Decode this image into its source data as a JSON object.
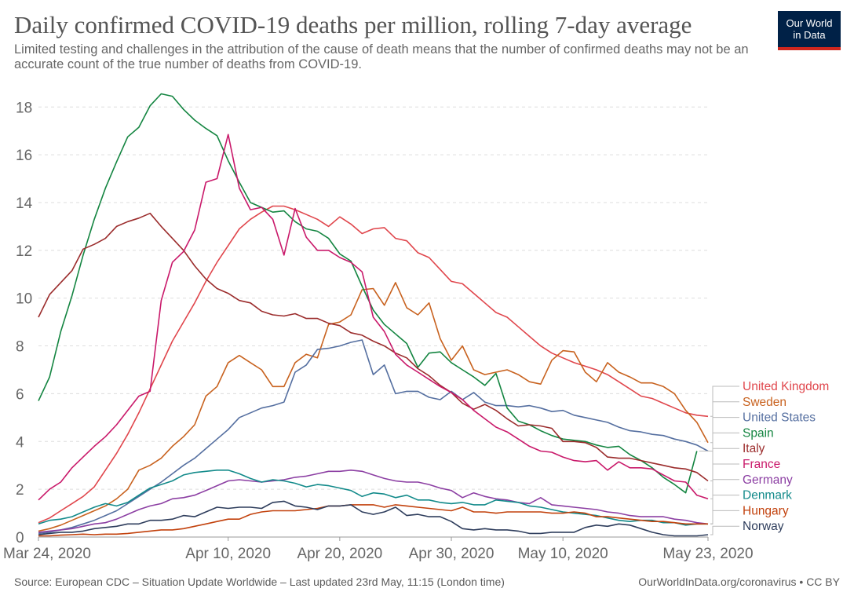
{
  "header": {
    "title": "Daily confirmed COVID-19 deaths per million, rolling 7-day average",
    "subtitle": "Limited testing and challenges in the attribution of the cause of death means that the number of confirmed deaths may not be an accurate count of the true number of deaths from COVID-19.",
    "logo_line1": "Our World",
    "logo_line2": "in Data"
  },
  "footer": {
    "source": "Source: European CDC – Situation Update Worldwide – Last updated 23rd May, 11:15 (London time)",
    "credit": "OurWorldInData.org/coronavirus • CC BY"
  },
  "chart_data": {
    "type": "line",
    "x_start": "2020-03-24",
    "x_end": "2020-05-23",
    "x_ticks": [
      {
        "label": "Mar 24, 2020",
        "day": 0
      },
      {
        "label": "Apr 10, 2020",
        "day": 17
      },
      {
        "label": "Apr 20, 2020",
        "day": 27
      },
      {
        "label": "Apr 30, 2020",
        "day": 37
      },
      {
        "label": "May 10, 2020",
        "day": 47
      },
      {
        "label": "May 23, 2020",
        "day": 60
      }
    ],
    "y_ticks": [
      0,
      2,
      4,
      6,
      8,
      10,
      12,
      14,
      16,
      18
    ],
    "ylim": [
      0,
      18.6
    ],
    "grid": "horizontal dashed",
    "legend": "right, labels connected to line ends",
    "series": [
      {
        "name": "United Kingdom",
        "color": "#e0464c",
        "values": [
          0.6,
          0.8,
          1.1,
          1.4,
          1.7,
          2.1,
          2.8,
          3.5,
          4.3,
          5.2,
          6.2,
          7.2,
          8.2,
          9.0,
          9.8,
          10.7,
          11.5,
          12.2,
          12.9,
          13.3,
          13.6,
          13.85,
          13.85,
          13.7,
          13.5,
          13.3,
          13.0,
          13.4,
          13.1,
          12.7,
          12.9,
          12.95,
          12.5,
          12.4,
          11.9,
          11.7,
          11.2,
          10.7,
          10.6,
          10.2,
          9.8,
          9.4,
          9.2,
          8.8,
          8.4,
          8.0,
          7.7,
          7.5,
          7.3,
          7.15,
          7.0,
          6.8,
          6.5,
          6.2,
          5.9,
          5.8,
          5.6,
          5.4,
          5.2,
          5.1,
          5.05
        ]
      },
      {
        "name": "Sweden",
        "color": "#c8621f",
        "values": [
          0.25,
          0.35,
          0.5,
          0.7,
          0.9,
          1.1,
          1.3,
          1.6,
          2.0,
          2.8,
          3.0,
          3.3,
          3.8,
          4.2,
          4.7,
          5.9,
          6.3,
          7.3,
          7.6,
          7.3,
          7.0,
          6.3,
          6.3,
          7.3,
          7.65,
          7.5,
          8.9,
          9.0,
          9.3,
          10.35,
          10.4,
          9.7,
          10.65,
          9.6,
          9.3,
          9.8,
          8.3,
          7.4,
          8.0,
          7.0,
          6.8,
          6.9,
          7.0,
          6.8,
          6.5,
          6.4,
          7.4,
          7.8,
          7.75,
          6.9,
          6.5,
          7.3,
          6.9,
          6.7,
          6.45,
          6.45,
          6.3,
          6.0,
          5.3,
          4.8,
          3.95
        ]
      },
      {
        "name": "United States",
        "color": "#556fa0",
        "values": [
          0.15,
          0.2,
          0.3,
          0.4,
          0.55,
          0.7,
          0.9,
          1.1,
          1.4,
          1.7,
          2.0,
          2.3,
          2.65,
          3.0,
          3.3,
          3.7,
          4.1,
          4.5,
          5.0,
          5.2,
          5.4,
          5.5,
          5.65,
          6.9,
          7.2,
          7.85,
          7.9,
          8.0,
          8.15,
          8.25,
          6.8,
          7.2,
          6.0,
          6.1,
          6.1,
          5.85,
          5.75,
          6.1,
          5.75,
          6.05,
          5.65,
          5.5,
          5.5,
          5.45,
          5.5,
          5.4,
          5.25,
          5.3,
          5.1,
          5.0,
          4.9,
          4.8,
          4.6,
          4.45,
          4.4,
          4.3,
          4.25,
          4.1,
          4.0,
          3.85,
          3.6
        ]
      },
      {
        "name": "Spain",
        "color": "#148541",
        "values": [
          5.7,
          6.7,
          8.6,
          10.1,
          11.8,
          13.3,
          14.6,
          15.7,
          16.75,
          17.15,
          18.05,
          18.55,
          18.45,
          17.9,
          17.45,
          17.1,
          16.8,
          15.75,
          14.85,
          14.0,
          13.8,
          13.6,
          13.65,
          13.2,
          12.9,
          12.8,
          12.5,
          11.85,
          11.55,
          10.5,
          9.5,
          8.9,
          8.5,
          8.1,
          7.1,
          7.7,
          7.75,
          7.3,
          7.0,
          6.7,
          6.35,
          6.85,
          5.4,
          4.85,
          4.7,
          4.45,
          4.25,
          4.1,
          4.05,
          4.0,
          3.85,
          3.75,
          3.8,
          3.45,
          3.2,
          2.9,
          2.5,
          2.2,
          1.85,
          3.6,
          null
        ]
      },
      {
        "name": "Italy",
        "color": "#9b2c2c",
        "values": [
          9.2,
          10.15,
          10.65,
          11.15,
          12.05,
          12.25,
          12.5,
          13.0,
          13.2,
          13.35,
          13.55,
          13.0,
          12.5,
          12.0,
          11.35,
          10.8,
          10.4,
          10.2,
          9.9,
          9.8,
          9.45,
          9.3,
          9.25,
          9.35,
          9.15,
          9.15,
          8.95,
          8.85,
          8.55,
          8.45,
          8.2,
          8.0,
          7.7,
          7.5,
          7.05,
          6.75,
          6.35,
          6.05,
          5.6,
          5.35,
          5.55,
          5.3,
          4.95,
          4.65,
          4.7,
          4.65,
          4.55,
          4.0,
          4.0,
          3.95,
          3.75,
          3.35,
          3.3,
          3.3,
          3.2,
          3.1,
          3.0,
          2.9,
          2.85,
          2.7,
          2.35
        ]
      },
      {
        "name": "France",
        "color": "#c9196a",
        "values": [
          1.55,
          2.0,
          2.3,
          2.9,
          3.35,
          3.8,
          4.2,
          4.7,
          5.3,
          5.9,
          6.1,
          9.9,
          11.5,
          11.95,
          12.85,
          14.85,
          15.0,
          16.85,
          14.6,
          13.7,
          13.8,
          13.3,
          11.8,
          13.75,
          12.55,
          12.0,
          12.0,
          11.7,
          11.5,
          11.1,
          9.2,
          8.6,
          7.65,
          7.2,
          6.9,
          6.6,
          6.3,
          6.05,
          5.75,
          5.3,
          4.95,
          4.6,
          4.4,
          4.1,
          3.8,
          3.6,
          3.55,
          3.35,
          3.2,
          3.15,
          3.2,
          2.8,
          3.15,
          2.9,
          2.9,
          2.85,
          2.6,
          2.35,
          2.3,
          1.75,
          1.6
        ]
      },
      {
        "name": "Germany",
        "color": "#8c3fa3",
        "values": [
          0.2,
          0.25,
          0.3,
          0.35,
          0.45,
          0.55,
          0.6,
          0.75,
          0.95,
          1.15,
          1.3,
          1.4,
          1.6,
          1.65,
          1.75,
          1.95,
          2.15,
          2.35,
          2.4,
          2.35,
          2.3,
          2.35,
          2.4,
          2.5,
          2.55,
          2.65,
          2.75,
          2.75,
          2.8,
          2.75,
          2.6,
          2.45,
          2.35,
          2.3,
          2.3,
          2.2,
          2.05,
          1.95,
          1.65,
          1.85,
          1.7,
          1.6,
          1.55,
          1.45,
          1.4,
          1.65,
          1.35,
          1.3,
          1.25,
          1.2,
          1.15,
          1.05,
          1.0,
          0.9,
          0.85,
          0.85,
          0.85,
          0.75,
          0.7,
          0.6,
          0.55
        ]
      },
      {
        "name": "Denmark",
        "color": "#128a8a",
        "values": [
          0.55,
          0.7,
          0.75,
          0.85,
          1.05,
          1.25,
          1.4,
          1.3,
          1.45,
          1.75,
          2.05,
          2.2,
          2.35,
          2.6,
          2.7,
          2.75,
          2.8,
          2.8,
          2.65,
          2.45,
          2.3,
          2.4,
          2.35,
          2.25,
          2.1,
          2.2,
          2.15,
          2.05,
          1.95,
          1.7,
          1.85,
          1.8,
          1.65,
          1.75,
          1.55,
          1.55,
          1.45,
          1.4,
          1.45,
          1.35,
          1.35,
          1.55,
          1.5,
          1.45,
          1.3,
          1.25,
          1.15,
          1.05,
          1.0,
          0.95,
          0.9,
          0.8,
          0.7,
          0.65,
          0.7,
          0.7,
          0.6,
          0.6,
          0.5,
          0.55,
          0.55
        ]
      },
      {
        "name": "Hungary",
        "color": "#c2410c",
        "values": [
          0.05,
          0.05,
          0.08,
          0.1,
          0.12,
          0.1,
          0.12,
          0.12,
          0.15,
          0.2,
          0.25,
          0.3,
          0.3,
          0.35,
          0.45,
          0.55,
          0.65,
          0.75,
          0.75,
          0.95,
          1.05,
          1.1,
          1.1,
          1.1,
          1.15,
          1.2,
          1.3,
          1.3,
          1.35,
          1.35,
          1.35,
          1.25,
          1.35,
          1.3,
          1.25,
          1.2,
          1.15,
          1.1,
          1.25,
          1.05,
          1.05,
          1.0,
          1.05,
          1.05,
          1.05,
          1.05,
          1.0,
          1.0,
          1.05,
          1.0,
          0.85,
          0.85,
          0.8,
          0.75,
          0.7,
          0.65,
          0.65,
          0.6,
          0.55,
          0.55,
          0.55
        ]
      },
      {
        "name": "Norway",
        "color": "#2e3d5c",
        "values": [
          0.1,
          0.15,
          0.2,
          0.2,
          0.25,
          0.35,
          0.4,
          0.45,
          0.55,
          0.55,
          0.7,
          0.7,
          0.75,
          0.9,
          0.85,
          1.05,
          1.25,
          1.2,
          1.25,
          1.25,
          1.2,
          1.45,
          1.5,
          1.3,
          1.25,
          1.15,
          1.3,
          1.3,
          1.35,
          1.05,
          0.95,
          1.05,
          1.25,
          0.9,
          0.95,
          0.85,
          0.85,
          0.65,
          0.35,
          0.3,
          0.35,
          0.3,
          0.3,
          0.25,
          0.15,
          0.15,
          0.2,
          0.2,
          0.2,
          0.4,
          0.5,
          0.45,
          0.55,
          0.5,
          0.35,
          0.2,
          0.1,
          0.05,
          0.05,
          0.05,
          0.1
        ]
      }
    ]
  }
}
